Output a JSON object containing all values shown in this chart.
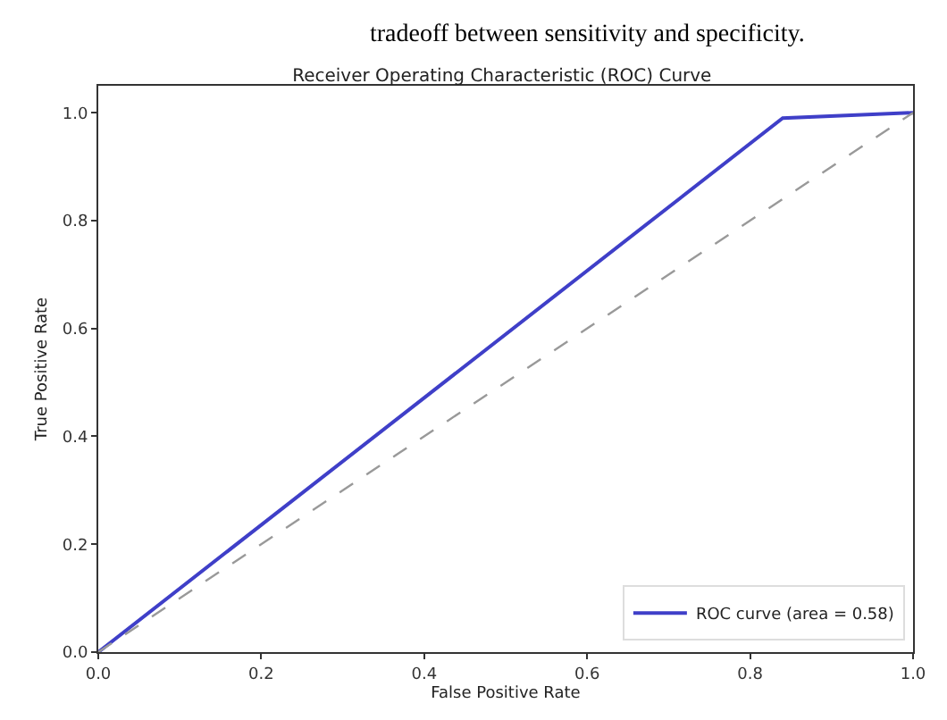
{
  "chart_data": {
    "type": "line",
    "title": "Receiver Operating Characteristic (ROC) Curve",
    "xlabel": "False Positive Rate",
    "ylabel": "True Positive Rate",
    "annotations": [
      "tradeoff between sensitivity and specificity."
    ],
    "series": [
      {
        "name": "ROC curve (area = 0.58)",
        "color": "#3f3fc8",
        "x": [
          0,
          0.84,
          1
        ],
        "values": [
          0,
          0.99,
          1
        ],
        "line_style": "solid"
      },
      {
        "color": "#999999",
        "x": [
          0,
          1
        ],
        "values": [
          0,
          1
        ],
        "line_style": "dashed"
      }
    ],
    "xlim": [
      0,
      1
    ],
    "ylim": [
      0,
      1.05
    ],
    "xticks": [
      {
        "value": 0,
        "label": "0.0"
      },
      0.2,
      0.4,
      0.6,
      0.8,
      {
        "value": 1,
        "label": "1.0"
      }
    ],
    "yticks": [
      {
        "value": 0,
        "label": "0.0"
      },
      0.2,
      0.4,
      0.6,
      0.8,
      {
        "value": 1,
        "label": "1.0"
      }
    ],
    "legend": "bottom right",
    "marker": "none"
  }
}
